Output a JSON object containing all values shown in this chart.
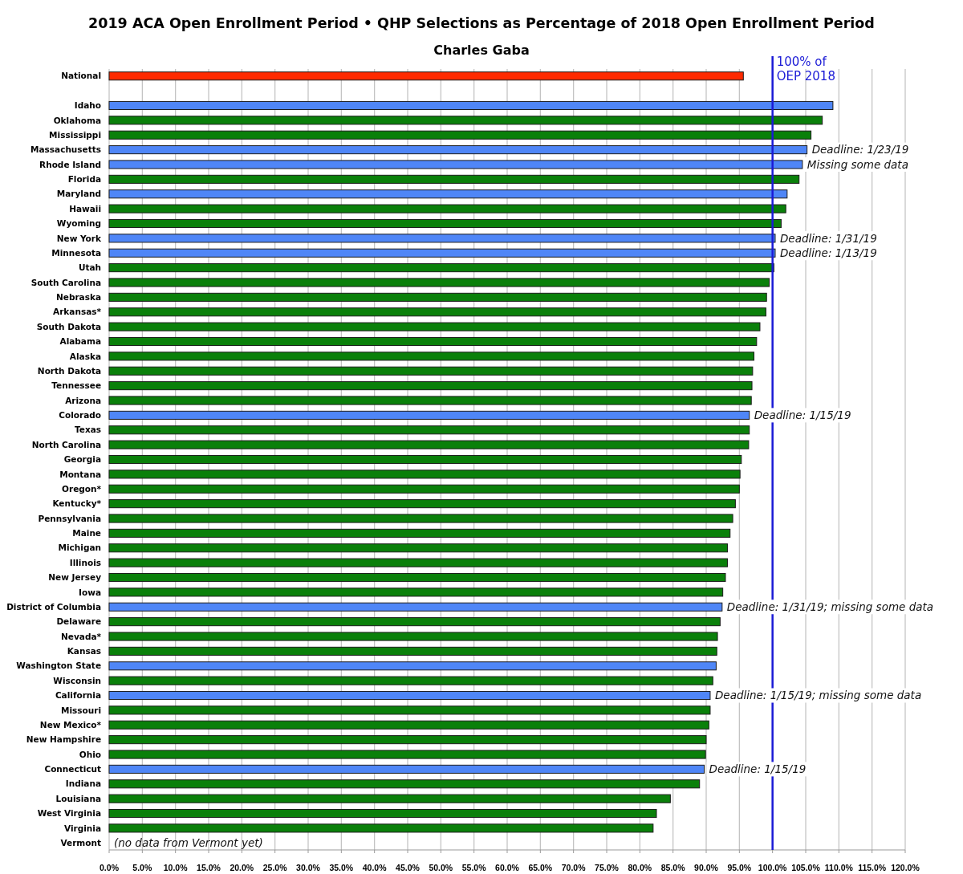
{
  "chart_data": {
    "type": "bar",
    "orientation": "horizontal",
    "title": "2019 ACA Open Enrollment Period  •  QHP Selections as Percentage of 2018 Open Enrollment Period",
    "subtitle": "Charles Gaba",
    "categories": [
      "National",
      null,
      "Idaho",
      "Oklahoma",
      "Mississippi",
      "Massachusetts",
      "Rhode Island",
      "Florida",
      "Maryland",
      "Hawaii",
      "Wyoming",
      "New York",
      "Minnesota",
      "Utah",
      "South Carolina",
      "Nebraska",
      "Arkansas*",
      "South Dakota",
      "Alabama",
      "Alaska",
      "North Dakota",
      "Tennessee",
      "Arizona",
      "Colorado",
      "Texas",
      "North Carolina",
      "Georgia",
      "Montana",
      "Oregon*",
      "Kentucky*",
      "Pennsylvania",
      "Maine",
      "Michigan",
      "Illinois",
      "New Jersey",
      "Iowa",
      "District of Columbia",
      "Delaware",
      "Nevada*",
      "Kansas",
      "Washington State",
      "Wisconsin",
      "California",
      "Missouri",
      "New Mexico*",
      "New Hampshire",
      "Ohio",
      "Connecticut",
      "Indiana",
      "Louisiana",
      "West Virginia",
      "Virginia",
      "Vermont"
    ],
    "values": [
      95.6,
      null,
      109.1,
      107.5,
      105.8,
      105.2,
      104.5,
      104.0,
      102.2,
      102.0,
      101.3,
      100.4,
      100.4,
      100.2,
      99.5,
      99.1,
      99.0,
      98.1,
      97.6,
      97.2,
      97.0,
      96.9,
      96.8,
      96.5,
      96.5,
      96.4,
      95.3,
      95.1,
      95.0,
      94.4,
      94.0,
      93.6,
      93.2,
      93.2,
      92.9,
      92.5,
      92.4,
      92.1,
      91.7,
      91.6,
      91.5,
      91.0,
      90.6,
      90.6,
      90.4,
      90.0,
      89.9,
      89.7,
      89.0,
      84.6,
      82.5,
      82.0,
      null
    ],
    "colors": [
      "#ff2a00",
      null,
      "#4f86f7",
      "#0a800a",
      "#0a800a",
      "#4f86f7",
      "#4f86f7",
      "#0a800a",
      "#4f86f7",
      "#0a800a",
      "#0a800a",
      "#4f86f7",
      "#4f86f7",
      "#0a800a",
      "#0a800a",
      "#0a800a",
      "#0a800a",
      "#0a800a",
      "#0a800a",
      "#0a800a",
      "#0a800a",
      "#0a800a",
      "#0a800a",
      "#4f86f7",
      "#0a800a",
      "#0a800a",
      "#0a800a",
      "#0a800a",
      "#0a800a",
      "#0a800a",
      "#0a800a",
      "#0a800a",
      "#0a800a",
      "#0a800a",
      "#0a800a",
      "#0a800a",
      "#4f86f7",
      "#0a800a",
      "#0a800a",
      "#0a800a",
      "#4f86f7",
      "#0a800a",
      "#4f86f7",
      "#0a800a",
      "#0a800a",
      "#0a800a",
      "#0a800a",
      "#4f86f7",
      "#0a800a",
      "#0a800a",
      "#0a800a",
      "#0a800a",
      null
    ],
    "xlim": [
      0,
      120
    ],
    "xticks": [
      {
        "value": 0,
        "label": "0.0%"
      },
      {
        "value": 5,
        "label": "5.0%"
      },
      {
        "value": 10,
        "label": "10.0%"
      },
      {
        "value": 15,
        "label": "15.0%"
      },
      {
        "value": 20,
        "label": "20.0%"
      },
      {
        "value": 25,
        "label": "25.0%"
      },
      {
        "value": 30,
        "label": "30.0%"
      },
      {
        "value": 35,
        "label": "35.0%"
      },
      {
        "value": 40,
        "label": "40.0%"
      },
      {
        "value": 45,
        "label": "45.0%"
      },
      {
        "value": 50,
        "label": "50.0%"
      },
      {
        "value": 55,
        "label": "55.0%"
      },
      {
        "value": 60,
        "label": "60.0%"
      },
      {
        "value": 65,
        "label": "65.0%"
      },
      {
        "value": 70,
        "label": "70.0%"
      },
      {
        "value": 75,
        "label": "75.0%"
      },
      {
        "value": 80,
        "label": "80.0%"
      },
      {
        "value": 85,
        "label": "85.0%"
      },
      {
        "value": 90,
        "label": "90.0%"
      },
      {
        "value": 95,
        "label": "95.0%"
      },
      {
        "value": 100,
        "label": "100.0%"
      },
      {
        "value": 105,
        "label": "105.0%"
      },
      {
        "value": 110,
        "label": "110.0%"
      },
      {
        "value": 115,
        "label": "115.0%"
      },
      {
        "value": 120,
        "label": "120.0%"
      }
    ],
    "grid": "x",
    "ref_lines": [
      {
        "axis": "x",
        "value": 100,
        "label": "100% of OEP 2018",
        "color": "#1a1ad6"
      }
    ],
    "annotations": [
      {
        "text": "Deadline: 1/23/19",
        "x": 105.2,
        "y": "Massachusetts"
      },
      {
        "text": "Missing some data",
        "x": 104.5,
        "y": "Rhode Island"
      },
      {
        "text": "Deadline: 1/31/19",
        "x": 100.4,
        "y": "New York"
      },
      {
        "text": "Deadline: 1/13/19",
        "x": 100.4,
        "y": "Minnesota"
      },
      {
        "text": "Deadline: 1/15/19",
        "x": 96.5,
        "y": "Colorado"
      },
      {
        "text": "Deadline: 1/31/19; missing some data",
        "x": 92.4,
        "y": "District of Columbia"
      },
      {
        "text": "Deadline: 1/15/19; missing some data",
        "x": 90.6,
        "y": "California"
      },
      {
        "text": "Deadline: 1/15/19",
        "x": 89.7,
        "y": "Connecticut"
      },
      "(no data from Vermont yet)"
    ]
  }
}
